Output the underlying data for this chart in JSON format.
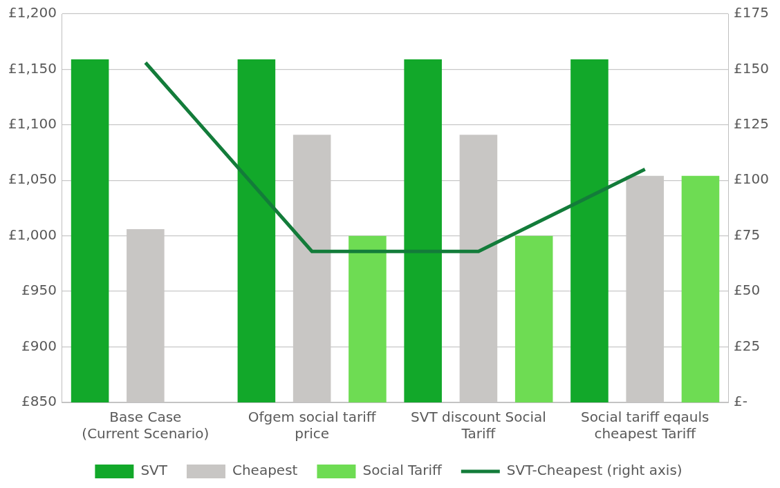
{
  "chart_data": {
    "type": "bar",
    "categories": [
      "Base Case\n(Current Scenario)",
      "Ofgem social tariff\nprice",
      "SVT discount Social\nTariff",
      "Social tariff eqauls\ncheapest Tariff"
    ],
    "series": [
      {
        "name": "SVT",
        "color": "#12a82a",
        "values": [
          1159,
          1159,
          1159,
          1159
        ]
      },
      {
        "name": "Cheapest",
        "color": "#c8c6c4",
        "values": [
          1006,
          1091,
          1091,
          1054
        ]
      },
      {
        "name": "Social Tariff",
        "color": "#6edc53",
        "values": [
          null,
          1000,
          1000,
          1054
        ]
      },
      {
        "name": "SVT-Cheapest (right axis)",
        "type": "line",
        "axis": "y2",
        "color": "#137c3a",
        "values": [
          153,
          68,
          68,
          105
        ]
      }
    ],
    "ylim": [
      850,
      1200
    ],
    "yticks": [
      {
        "value": 850,
        "label": "£850"
      },
      {
        "value": 900,
        "label": "£900"
      },
      {
        "value": 950,
        "label": "£950"
      },
      {
        "value": 1000,
        "label": "£1,000"
      },
      {
        "value": 1050,
        "label": "£1,050"
      },
      {
        "value": 1100,
        "label": "£1,100"
      },
      {
        "value": 1150,
        "label": "£1,150"
      },
      {
        "value": 1200,
        "label": "£1,200"
      }
    ],
    "y2lim": [
      0,
      175
    ],
    "y2ticks": [
      {
        "value": 0,
        "label": "£-"
      },
      {
        "value": 25,
        "label": "£25"
      },
      {
        "value": 50,
        "label": "£50"
      },
      {
        "value": 75,
        "label": "£75"
      },
      {
        "value": 100,
        "label": "£100"
      },
      {
        "value": 125,
        "label": "£125"
      },
      {
        "value": 150,
        "label": "£150"
      },
      {
        "value": 175,
        "label": "£175"
      }
    ],
    "grid": "y",
    "legend": "bottom",
    "marker": "none",
    "line_style": "solid"
  }
}
